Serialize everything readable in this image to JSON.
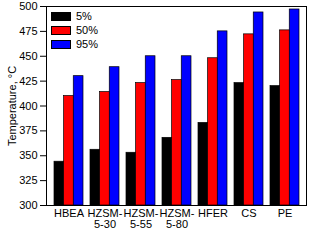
{
  "chart_data": {
    "type": "bar",
    "categories": [
      "HBEA",
      "HZSM-5-30",
      "HZSM-5-55",
      "HZSM-5-80",
      "HFER",
      "CS",
      "PE"
    ],
    "y_label": "Temperature, °C",
    "series": [
      {
        "name": "5%",
        "color": "#000000",
        "values": [
          344,
          356,
          353,
          368,
          383,
          423,
          420
        ]
      },
      {
        "name": "50%",
        "color": "#ff0000",
        "values": [
          410,
          414,
          423,
          426,
          448,
          472,
          476
        ]
      },
      {
        "name": "95%",
        "color": "#0000ff",
        "values": [
          430,
          439,
          450,
          450,
          475,
          494,
          497
        ]
      }
    ],
    "ylim": [
      300,
      500
    ],
    "yticks": [
      300,
      325,
      350,
      375,
      400,
      425,
      450,
      475,
      500
    ],
    "grid": false,
    "legend": "upper left"
  }
}
